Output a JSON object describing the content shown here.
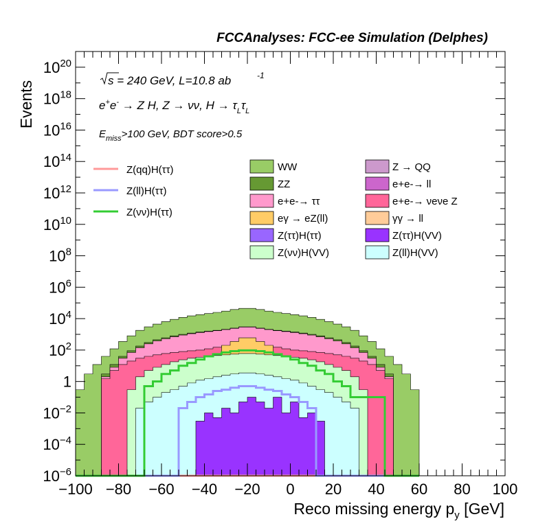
{
  "chart_data": {
    "type": "histogram",
    "title": "FCCAnalyses: FCC-ee Simulation (Delphes)",
    "ylabel": "Events",
    "xlabel_main": "Reco missing energy p",
    "xlabel_sub": "y",
    "xlabel_unit": " [GeV]",
    "xlim": [
      -100,
      100
    ],
    "ylog": true,
    "ylim": [
      1e-06,
      1e+21
    ],
    "x_ticks": [
      -100,
      -80,
      -60,
      -40,
      -20,
      0,
      20,
      40,
      60,
      80,
      100
    ],
    "x_tick_labels": [
      "−100",
      "−80",
      "−60",
      "−40",
      "−20",
      "0",
      "20",
      "40",
      "60",
      "80",
      "100"
    ],
    "y_ticks": [
      {
        "value": 1e-06,
        "base": "10",
        "exp": "−6"
      },
      {
        "value": 0.0001,
        "base": "10",
        "exp": "−4"
      },
      {
        "value": 0.01,
        "base": "10",
        "exp": "−2"
      },
      {
        "value": 1,
        "base": "1",
        "exp": ""
      },
      {
        "value": 100.0,
        "base": "10",
        "exp": "2"
      },
      {
        "value": 10000.0,
        "base": "10",
        "exp": "4"
      },
      {
        "value": 1000000.0,
        "base": "10",
        "exp": "6"
      },
      {
        "value": 100000000.0,
        "base": "10",
        "exp": "8"
      },
      {
        "value": 10000000000.0,
        "base": "10",
        "exp": "10"
      },
      {
        "value": 1000000000000.0,
        "base": "10",
        "exp": "12"
      },
      {
        "value": 100000000000000.0,
        "base": "10",
        "exp": "14"
      },
      {
        "value": 1e+16,
        "base": "10",
        "exp": "16"
      },
      {
        "value": 1e+18,
        "base": "10",
        "exp": "18"
      },
      {
        "value": 1e+20,
        "base": "10",
        "exp": "20"
      }
    ],
    "bin_edges_start": -100,
    "bin_width": 4,
    "stacked_totals": [
      {
        "name": "WW",
        "color": "#99cc66",
        "values": [
          0.3,
          3,
          12,
          40,
          120,
          350,
          800,
          1800,
          3000,
          4500,
          6500,
          9000,
          12000,
          15000,
          18000,
          21000,
          25000,
          30000,
          38000,
          45000,
          45000,
          38000,
          30000,
          25000,
          21000,
          18000,
          15000,
          12000,
          9000,
          6500,
          4500,
          3000,
          1800,
          800,
          350,
          120,
          40,
          12,
          3,
          0.3
        ]
      },
      {
        "name": "ZZ",
        "color": "#669933",
        "values": [
          1e-06,
          1e-06,
          1e-06,
          3,
          12,
          40,
          90,
          180,
          300,
          450,
          600,
          800,
          1000,
          1200,
          1400,
          1600,
          1800,
          2100,
          2500,
          3000,
          3000,
          2500,
          2100,
          1800,
          1600,
          1400,
          1200,
          1000,
          800,
          600,
          450,
          300,
          180,
          90,
          40,
          12,
          3,
          1e-06,
          1e-06,
          1e-06
        ]
      },
      {
        "name": "e+e- → ττ",
        "color": "#ff99cc",
        "values": [
          1e-06,
          1e-06,
          1e-06,
          2,
          8,
          30,
          70,
          140,
          250,
          380,
          520,
          700,
          900,
          1100,
          1300,
          1500,
          1700,
          2000,
          2400,
          2900,
          2900,
          2400,
          2000,
          1700,
          1500,
          1300,
          1100,
          900,
          700,
          520,
          380,
          250,
          140,
          70,
          30,
          8,
          2,
          1e-06,
          1e-06,
          1e-06
        ]
      },
      {
        "name": "e+e- → νeνe Z",
        "color": "#ff6699",
        "values": [
          1e-06,
          1e-06,
          1e-06,
          1.5,
          5,
          12,
          20,
          30,
          40,
          50,
          60,
          70,
          80,
          90,
          100,
          120,
          150,
          180,
          200,
          220,
          220,
          200,
          180,
          150,
          120,
          100,
          90,
          80,
          70,
          60,
          50,
          40,
          30,
          20,
          12,
          5,
          1.5,
          1e-06,
          1e-06,
          1e-06
        ]
      },
      {
        "name": "eγ → eZ(ll)",
        "color": "#ffcc66",
        "values": [
          1e-06,
          1e-06,
          1e-06,
          1e-06,
          1e-06,
          1e-06,
          1e-06,
          1e-06,
          1e-06,
          1e-06,
          1e-06,
          1e-06,
          1e-06,
          1e-06,
          1e-06,
          1e-06,
          1e-06,
          200,
          350,
          600,
          600,
          350,
          200,
          1e-06,
          1e-06,
          1e-06,
          1e-06,
          1e-06,
          1e-06,
          1e-06,
          1e-06,
          1e-06,
          1e-06,
          1e-06,
          1e-06,
          1e-06,
          1e-06,
          1e-06,
          1e-06,
          1e-06
        ]
      },
      {
        "name": "Z → QQ",
        "color": "#cc99cc",
        "values": [
          1e-06,
          1e-06,
          1e-06,
          1e-06,
          1e-06,
          1e-06,
          1e-06,
          1e-06,
          1e-06,
          1e-06,
          1e-06,
          1e-06,
          1e-06,
          1e-06,
          1e-06,
          1e-06,
          1e-06,
          1e-06,
          1e-06,
          15,
          15,
          1e-06,
          1e-06,
          1e-06,
          1e-06,
          1e-06,
          1e-06,
          1e-06,
          1e-06,
          1e-06,
          1e-06,
          1e-06,
          1e-06,
          1e-06,
          1e-06,
          1e-06,
          1e-06,
          1e-06,
          1e-06,
          1e-06
        ]
      },
      {
        "name": "Z(νν)H(VV)",
        "color": "#ccffcc",
        "values": [
          1e-06,
          1e-06,
          1e-06,
          1e-06,
          1e-06,
          1e-06,
          0.3,
          2,
          5,
          8,
          12,
          18,
          24,
          30,
          35,
          40,
          45,
          50,
          55,
          60,
          60,
          55,
          50,
          45,
          40,
          35,
          30,
          24,
          18,
          12,
          8,
          5,
          2,
          0.3,
          1e-06,
          1e-06,
          1e-06,
          1e-06,
          1e-06,
          1e-06
        ]
      },
      {
        "name": "Z(ll)H(VV)",
        "color": "#ccffff",
        "values": [
          1e-06,
          1e-06,
          1e-06,
          1e-06,
          1e-06,
          1e-06,
          1e-06,
          0.02,
          0.05,
          0.1,
          0.2,
          0.3,
          0.5,
          0.8,
          1.2,
          1.5,
          2,
          2.5,
          3,
          3.5,
          3.5,
          3,
          2.5,
          2,
          1.5,
          1.2,
          0.8,
          0.5,
          0.3,
          0.2,
          0.1,
          0.05,
          0.02,
          1e-06,
          1e-06,
          1e-06,
          1e-06,
          1e-06,
          1e-06,
          1e-06
        ]
      },
      {
        "name": "Z(ττ)H(VV)",
        "color": "#9933ff",
        "values": [
          1e-06,
          1e-06,
          1e-06,
          1e-06,
          1e-06,
          1e-06,
          1e-06,
          1e-06,
          1e-06,
          1e-06,
          1e-06,
          1e-06,
          1e-06,
          1e-06,
          0.003,
          0.01,
          0.005,
          0.02,
          0.01,
          0.05,
          0.1,
          0.05,
          0.02,
          0.1,
          0.01,
          0.05,
          0.005,
          0.01,
          0.003,
          1e-06,
          1e-06,
          1e-06,
          1e-06,
          1e-06,
          1e-06,
          1e-06,
          1e-06,
          1e-06,
          1e-06,
          1e-06
        ]
      },
      {
        "name": "Z(ττ)H(ττ)",
        "color": "#9966ff",
        "values": [
          1e-06,
          1e-06,
          1e-06,
          1e-06,
          1e-06,
          1e-06,
          1e-06,
          1e-06,
          1e-06,
          1e-06,
          1e-06,
          1e-06,
          1e-06,
          1e-06,
          1e-06,
          1e-06,
          1e-06,
          1e-06,
          1e-06,
          1e-06,
          1e-06,
          1e-06,
          1e-06,
          1e-06,
          1e-06,
          1e-06,
          1e-06,
          1e-06,
          1e-06,
          1e-06,
          1e-06,
          1e-06,
          1e-06,
          1e-06,
          1e-06,
          1e-06,
          1e-06,
          1e-06,
          1e-06,
          1e-06
        ]
      }
    ],
    "signal_lines": [
      {
        "name": "Z(qq)H(ττ)",
        "color": "#ff9999",
        "values": [
          1e-06,
          1e-06,
          1e-06,
          1e-06,
          1e-06,
          1e-06,
          1e-06,
          1e-06,
          1e-06,
          1e-06,
          1e-06,
          1e-06,
          1e-06,
          1e-06,
          1e-06,
          1e-06,
          1e-06,
          1e-06,
          1e-06,
          1e-06,
          1e-06,
          1e-06,
          1e-06,
          1e-06,
          1e-06,
          1e-06,
          1e-06,
          1e-06,
          1e-06,
          1e-06,
          1e-06,
          1e-06,
          1e-06,
          1e-06,
          1e-06,
          1e-06,
          1e-06,
          1e-06,
          1e-06,
          1e-06
        ]
      },
      {
        "name": "Z(ll)H(ττ)",
        "color": "#9999ff",
        "values": [
          1e-06,
          1e-06,
          1e-06,
          1e-06,
          1e-06,
          1e-06,
          1e-06,
          1e-06,
          1e-06,
          1e-06,
          1e-06,
          1e-06,
          0.02,
          0.05,
          0.1,
          0.15,
          0.25,
          0.3,
          0.4,
          0.5,
          0.5,
          0.4,
          0.3,
          0.25,
          0.15,
          0.1,
          0.05,
          0.02,
          1e-06,
          1e-06,
          1e-06,
          1e-06,
          1e-06,
          1e-06,
          1e-06,
          1e-06,
          1e-06,
          1e-06,
          1e-06,
          1e-06
        ]
      },
      {
        "name": "Z(νν)H(ττ)",
        "color": "#33cc33",
        "values": [
          1e-06,
          1e-06,
          1e-06,
          1e-06,
          1e-06,
          1e-06,
          1e-06,
          1e-06,
          0.5,
          1,
          3,
          5,
          10,
          15,
          25,
          40,
          55,
          70,
          85,
          95,
          95,
          85,
          70,
          55,
          40,
          25,
          15,
          10,
          5,
          3,
          1,
          0.5,
          0.1,
          0.1,
          0.1,
          0.1,
          1e-06,
          1e-06,
          1e-06,
          1e-06
        ]
      }
    ],
    "legend_left": [
      {
        "label": "Z(qq)H(ττ)",
        "color": "#ff9999"
      },
      {
        "label": "Z(ll)H(ττ)",
        "color": "#9999ff"
      },
      {
        "label": "Z(νν)H(ττ)",
        "color": "#33cc33"
      }
    ],
    "legend_mid": [
      {
        "label": "WW",
        "color": "#99cc66"
      },
      {
        "label": "ZZ",
        "color": "#669933"
      },
      {
        "label": "e+e-→ ττ",
        "color": "#ff99cc"
      },
      {
        "label": "eγ → eZ(ll)",
        "color": "#ffcc66"
      },
      {
        "label": "Z(ττ)H(ττ)",
        "color": "#9966ff"
      },
      {
        "label": "Z(νν)H(VV)",
        "color": "#ccffcc"
      }
    ],
    "legend_right": [
      {
        "label": "Z → QQ",
        "color": "#cc99cc"
      },
      {
        "label": "e+e-→ ll",
        "color": "#cc66cc"
      },
      {
        "label": "e+e-→ νeνe Z",
        "color": "#ff6699"
      },
      {
        "label": "γγ → ll",
        "color": "#ffcc99"
      },
      {
        "label": "Z(ττ)H(VV)",
        "color": "#9933ff"
      },
      {
        "label": "Z(ll)H(VV)",
        "color": "#ccffff"
      }
    ]
  },
  "annotations": {
    "energy_s": "s",
    "energy_text": " = 240 GeV, L=10.8 ab",
    "energy_exp": "-1"
  }
}
